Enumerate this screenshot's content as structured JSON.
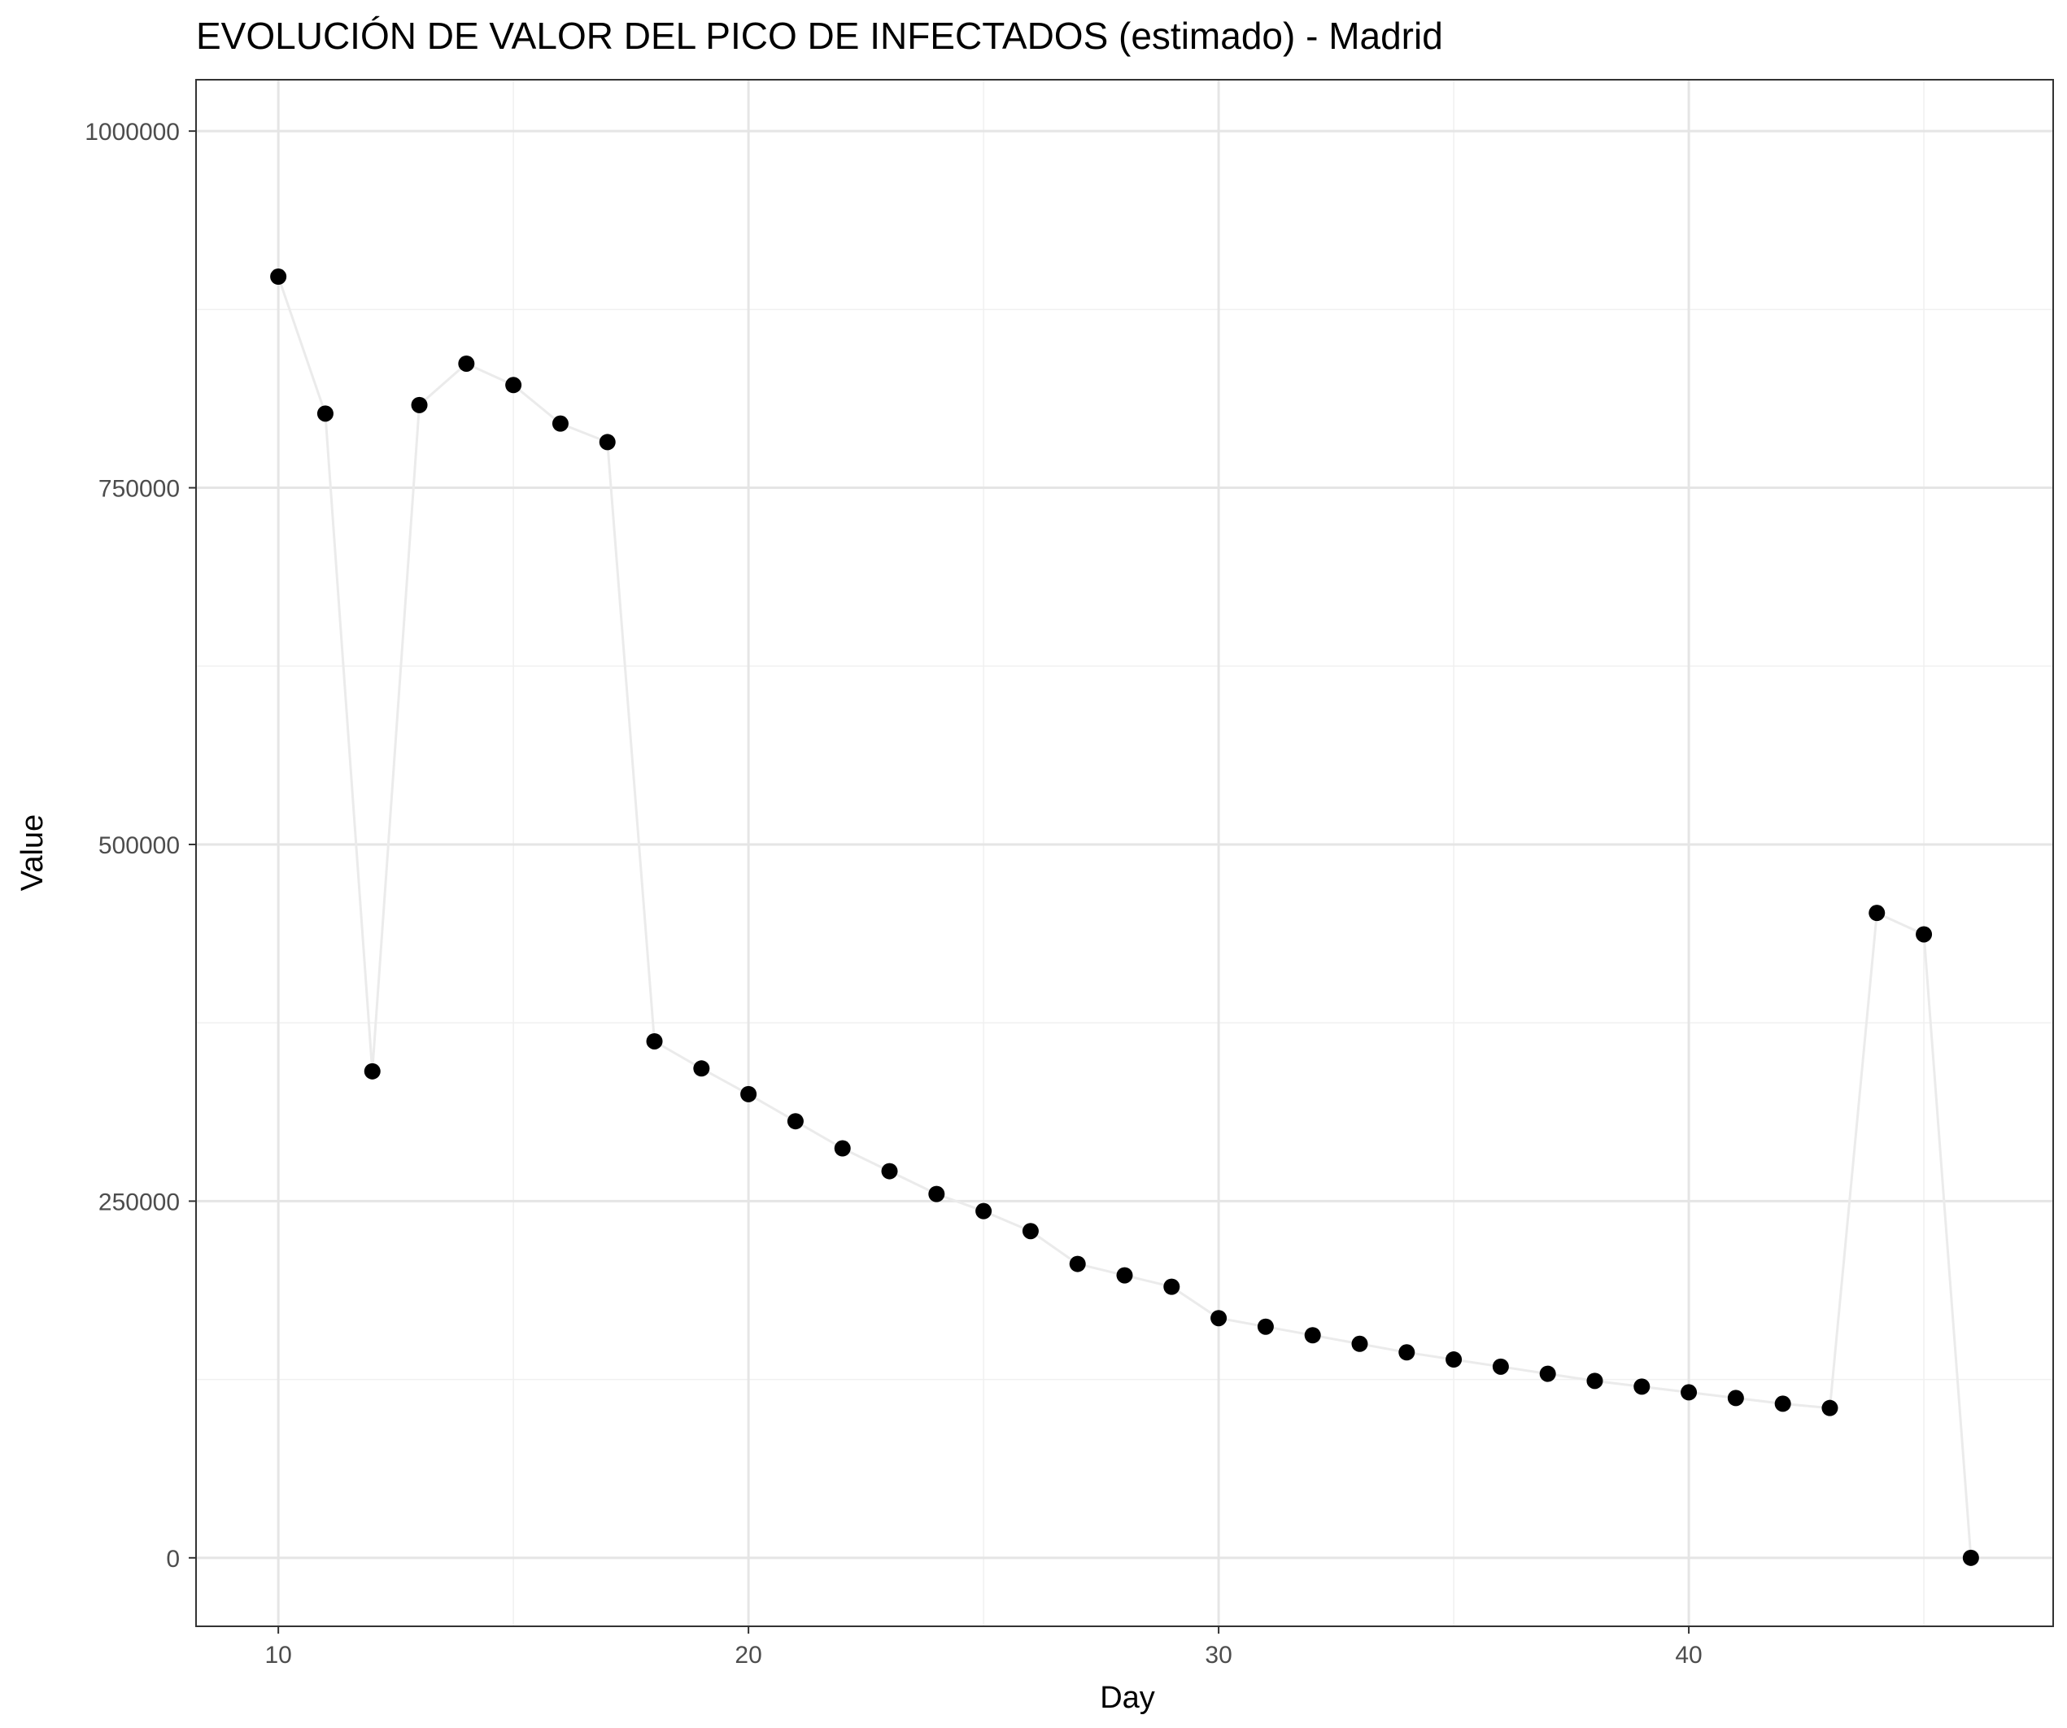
{
  "chart_data": {
    "type": "line",
    "title": "EVOLUCIÓN DE VALOR DEL PICO DE INFECTADOS (estimado) - Madrid",
    "xlabel": "Day",
    "ylabel": "Value",
    "xlim": [
      8.25,
      47.75
    ],
    "ylim": [
      -48000,
      1036000
    ],
    "x_ticks": [
      10,
      20,
      30,
      40
    ],
    "x_tick_labels": [
      "10",
      "20",
      "30",
      "40"
    ],
    "x_minor_ticks": [
      15,
      25,
      35,
      45
    ],
    "y_ticks": [
      0,
      250000,
      500000,
      750000,
      1000000
    ],
    "y_tick_labels": [
      "0",
      "250000",
      "500000",
      "750000",
      "1000000"
    ],
    "y_minor_ticks": [
      125000,
      375000,
      625000,
      875000
    ],
    "grid": true,
    "legend": "none",
    "series": [
      {
        "x": [
          10,
          11,
          12,
          13,
          14,
          15,
          16,
          17,
          18,
          19,
          20,
          21,
          22,
          23,
          24,
          25,
          26,
          27,
          28,
          29,
          30,
          31,
          32,
          33,
          34,
          35,
          36,
          37,
          38,
          39,
          40,
          41,
          42,
          43,
          44,
          45,
          46
        ],
        "y": [
          898000,
          802000,
          341000,
          808000,
          837000,
          822000,
          795000,
          782000,
          362000,
          343000,
          325000,
          306000,
          287000,
          271000,
          255000,
          243000,
          229000,
          206000,
          198000,
          190000,
          168000,
          162000,
          156000,
          150000,
          144000,
          139000,
          134000,
          129000,
          124000,
          120000,
          116000,
          112000,
          108000,
          105000,
          452000,
          437000,
          0
        ],
        "line_color": "#ebebeb",
        "point_color": "#000000"
      }
    ]
  },
  "colors": {
    "background": "#ffffff",
    "panel_border": "#333333",
    "grid_major": "#e5e5e5",
    "grid_minor": "#f0f0f0",
    "line": "#ebebeb",
    "point": "#000000",
    "tick_label": "#4d4d4d"
  }
}
